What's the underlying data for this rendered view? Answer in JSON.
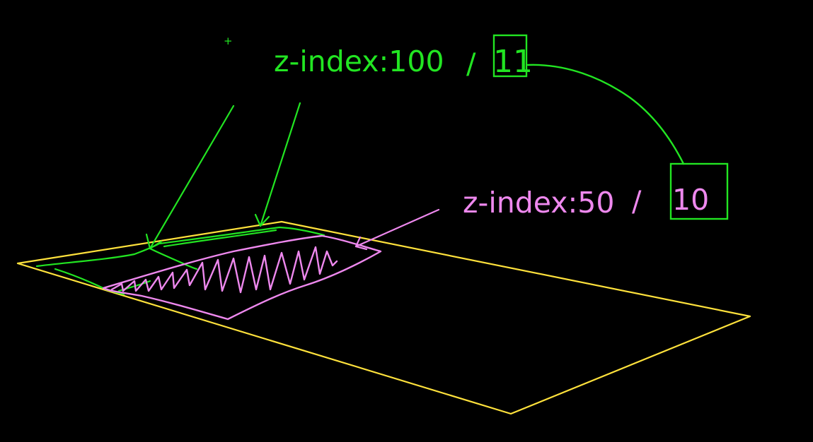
{
  "labels": {
    "top": {
      "text": "z-index:100",
      "separator": "/",
      "boxed_value": "11"
    },
    "middle": {
      "text": "z-index:50",
      "separator": "/",
      "boxed_value": "10"
    },
    "cursor_mark": "+"
  },
  "colors": {
    "background": "#000000",
    "plane": "#ffe23c",
    "layer_top": "#22e522",
    "layer_mid": "#ee88ee"
  }
}
